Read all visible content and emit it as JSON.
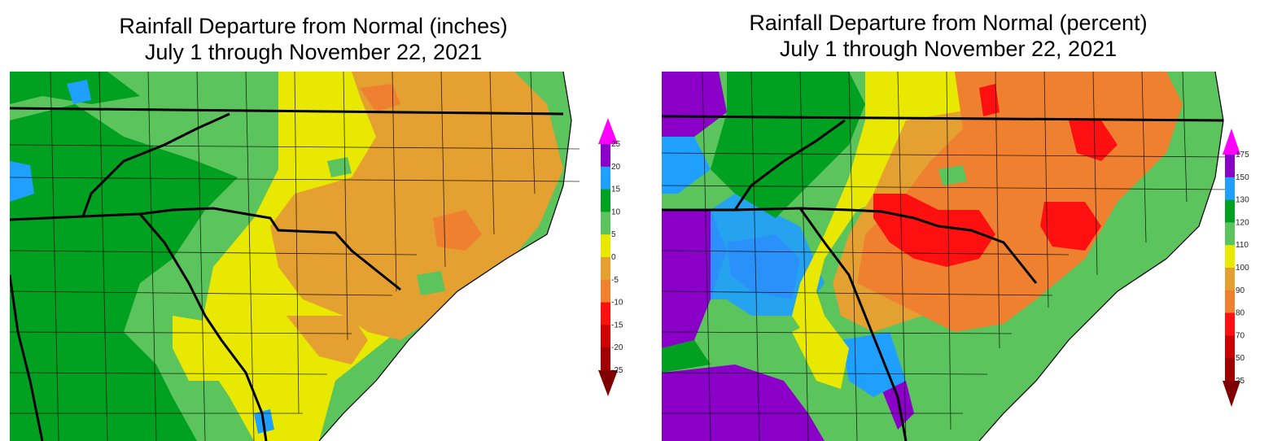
{
  "left_map": {
    "title_line1": "Rainfall Departure from Normal (inches)",
    "title_line2": "July 1 through November 22, 2021",
    "legend": {
      "levels": [
        "25",
        "20",
        "15",
        "10",
        "5",
        "0",
        "-5",
        "-10",
        "-15",
        "-20",
        "-25"
      ],
      "colors": [
        "#8a00c8",
        "#1fa0ff",
        "#00a020",
        "#5cc45c",
        "#e8e800",
        "#e4a030",
        "#ee8030",
        "#ff1010",
        "#cc0000",
        "#a00000"
      ],
      "top_arrow_color": "#ff00ff",
      "bottom_arrow_color": "#800000"
    }
  },
  "right_map": {
    "title_line1": "Rainfall Departure from Normal (percent)",
    "title_line2": "July 1 through November 22, 2021",
    "legend": {
      "levels": [
        "175",
        "150",
        "130",
        "120",
        "110",
        "100",
        "90",
        "80",
        "70",
        "50",
        "25"
      ],
      "colors": [
        "#8a00c8",
        "#1fa0ff",
        "#00a020",
        "#5cc45c",
        "#e8e800",
        "#e4a030",
        "#ee8030",
        "#ff1010",
        "#cc0000",
        "#a00000"
      ],
      "top_arrow_color": "#ff00ff",
      "bottom_arrow_color": "#800000"
    }
  },
  "colors": {
    "green_dark": "#00a020",
    "green_light": "#5cc45c",
    "yellow": "#e8e800",
    "orange_light": "#e4a030",
    "orange": "#ee8030",
    "red": "#ff1010",
    "blue": "#1fa0ff",
    "purple": "#8a00c8",
    "boundary": "#000000"
  }
}
